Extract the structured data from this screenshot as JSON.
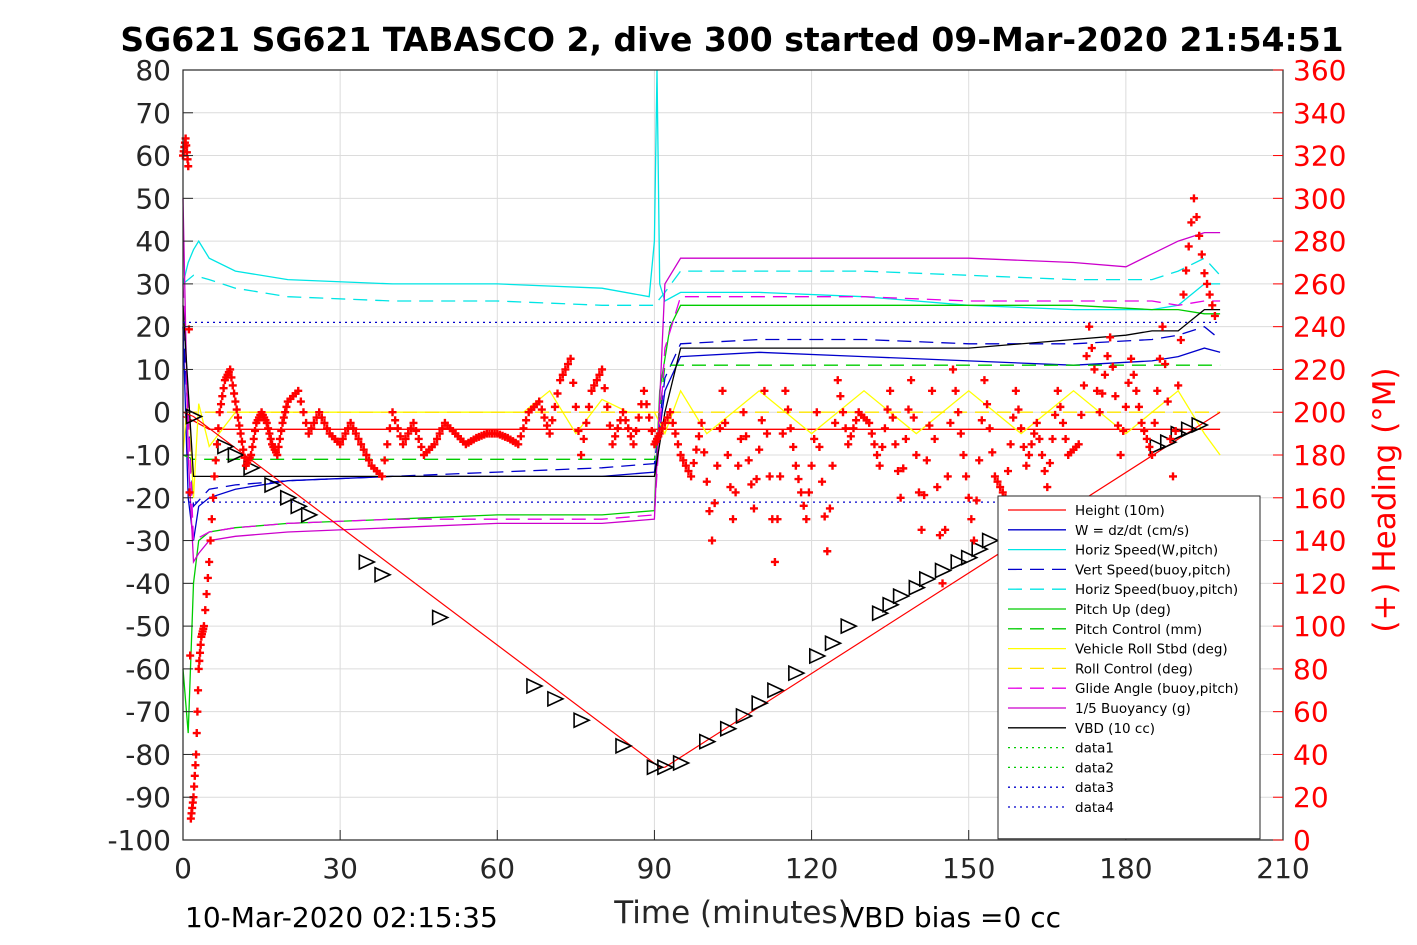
{
  "chart_data": {
    "type": "line",
    "title": "SG621 SG621 TABASCO 2, dive 300 started 09-Mar-2020 21:54:51",
    "xlabel": "Time (minutes)",
    "ylabel": "",
    "y2label": "(+) Heading (°M)",
    "xlim": [
      0,
      210
    ],
    "ylim": [
      -100,
      80
    ],
    "y2lim": [
      0,
      360
    ],
    "x_ticks": [
      "0",
      "30",
      "60",
      "90",
      "120",
      "150",
      "180",
      "210"
    ],
    "y_ticks": [
      "80",
      "70",
      "60",
      "50",
      "40",
      "30",
      "20",
      "10",
      "0",
      "-10",
      "-20",
      "-30",
      "-40",
      "-50",
      "-60",
      "-70",
      "-80",
      "-90",
      "-100"
    ],
    "y2_ticks": [
      "360",
      "340",
      "320",
      "300",
      "280",
      "260",
      "240",
      "220",
      "200",
      "180",
      "160",
      "140",
      "120",
      "100",
      "80",
      "60",
      "40",
      "20",
      "0"
    ],
    "grid": true,
    "legend_position": "bottom-right",
    "footer_left": "10-Mar-2020 02:15:35",
    "footer_right": "VBD bias =0 cc",
    "series": [
      {
        "name": "Height (10m)",
        "color": "#ff0000",
        "style": "solid",
        "x": [
          0,
          2,
          5,
          20,
          40,
          60,
          90,
          120,
          160,
          198
        ],
        "y": [
          -1,
          -2,
          -4,
          -4,
          -4,
          -4,
          -4,
          -4,
          -4,
          -4
        ]
      },
      {
        "name": "W = dz/dt (cm/s)",
        "color": "#0000cc",
        "style": "solid",
        "x": [
          0,
          1,
          2,
          3,
          5,
          10,
          20,
          40,
          60,
          80,
          90,
          92,
          95,
          110,
          130,
          150,
          170,
          185,
          190,
          195,
          198
        ],
        "y": [
          20,
          -20,
          -30,
          -22,
          -20,
          -18,
          -16,
          -15,
          -15,
          -15,
          -14,
          5,
          13,
          14,
          13,
          12,
          11,
          12,
          13,
          15,
          14
        ]
      },
      {
        "name": "Horiz Speed(W,pitch)",
        "color": "#00e5e5",
        "style": "solid",
        "x": [
          0,
          1,
          2,
          3,
          5,
          10,
          20,
          40,
          60,
          80,
          89,
          90,
          90.5,
          91,
          92,
          95,
          110,
          130,
          150,
          170,
          185,
          190,
          195,
          198
        ],
        "y": [
          30,
          35,
          38,
          40,
          36,
          33,
          31,
          30,
          30,
          29,
          27,
          40,
          80,
          30,
          26,
          28,
          28,
          27,
          25,
          24,
          24,
          25,
          30,
          30
        ]
      },
      {
        "name": "Vert Speed(buoy,pitch)",
        "color": "#0000cc",
        "style": "dashed",
        "x": [
          0,
          2,
          5,
          10,
          20,
          40,
          60,
          80,
          90,
          92,
          95,
          110,
          130,
          150,
          170,
          185,
          190,
          195,
          198
        ],
        "y": [
          20,
          -22,
          -18,
          -17,
          -16,
          -15,
          -14,
          -13,
          -12,
          8,
          16,
          17,
          17,
          16,
          16,
          17,
          18,
          20,
          17
        ]
      },
      {
        "name": "Horiz Speed(buoy,pitch)",
        "color": "#00e5e5",
        "style": "dashed",
        "x": [
          0,
          2,
          5,
          10,
          20,
          40,
          60,
          80,
          90,
          92,
          95,
          110,
          130,
          150,
          170,
          185,
          190,
          195,
          198
        ],
        "y": [
          30,
          32,
          31,
          29,
          27,
          26,
          26,
          25,
          25,
          28,
          33,
          33,
          33,
          32,
          31,
          31,
          33,
          36,
          32
        ]
      },
      {
        "name": "Pitch Up (deg)",
        "color": "#00cc00",
        "style": "solid",
        "x": [
          0,
          1,
          2,
          3,
          5,
          10,
          20,
          40,
          60,
          80,
          90,
          91,
          93,
          95,
          110,
          130,
          150,
          170,
          185,
          190,
          195,
          198
        ],
        "y": [
          -60,
          -75,
          -40,
          -30,
          -28,
          -27,
          -26,
          -25,
          -24,
          -24,
          -23,
          5,
          20,
          25,
          25,
          25,
          25,
          25,
          24,
          24,
          23,
          23
        ]
      },
      {
        "name": "Pitch Control (mm)",
        "color": "#00cc00",
        "style": "dashed",
        "x": [
          0,
          2,
          5,
          30,
          60,
          90,
          92,
          95,
          130,
          170,
          198
        ],
        "y": [
          -10,
          -11,
          -11,
          -11,
          -11,
          -11,
          11,
          11,
          11,
          11,
          11
        ]
      },
      {
        "name": "Vehicle Roll Stbd (deg)",
        "color": "#ffff00",
        "style": "solid",
        "x": [
          0,
          1,
          2,
          3,
          5,
          10,
          20,
          30,
          40,
          50,
          60,
          65,
          70,
          75,
          80,
          85,
          90,
          92,
          95,
          100,
          110,
          120,
          130,
          140,
          150,
          160,
          170,
          180,
          190,
          195,
          198
        ],
        "y": [
          -10,
          5,
          -20,
          2,
          -8,
          0,
          0,
          0,
          0,
          0,
          0,
          0,
          5,
          -5,
          3,
          0,
          0,
          -5,
          5,
          -5,
          5,
          -5,
          5,
          -5,
          5,
          -5,
          5,
          -5,
          5,
          -5,
          -10
        ]
      },
      {
        "name": "Roll Control (deg)",
        "color": "#ffe600",
        "style": "dashed",
        "x": [
          0,
          2,
          5,
          30,
          60,
          90,
          92,
          95,
          130,
          170,
          198
        ],
        "y": [
          0,
          0,
          0,
          0,
          0,
          0,
          0,
          0,
          0,
          0,
          0
        ]
      },
      {
        "name": "Glide Angle (buoy,pitch)",
        "color": "#e600e6",
        "style": "dashed",
        "x": [
          0,
          2,
          5,
          10,
          20,
          40,
          60,
          80,
          90,
          92,
          95,
          110,
          130,
          150,
          170,
          185,
          190,
          195,
          198
        ],
        "y": [
          30,
          -30,
          -28,
          -27,
          -26,
          -25,
          -25,
          -25,
          -24,
          15,
          27,
          27,
          27,
          26,
          26,
          26,
          25,
          26,
          26
        ]
      },
      {
        "name": "1/5 Buoyancy (g)",
        "color": "#cc00cc",
        "style": "solid",
        "x": [
          0,
          1,
          2,
          3,
          5,
          10,
          20,
          40,
          60,
          80,
          90,
          92,
          95,
          110,
          130,
          150,
          170,
          180,
          185,
          190,
          195,
          198
        ],
        "y": [
          50,
          -10,
          -35,
          -33,
          -30,
          -29,
          -28,
          -27,
          -26,
          -26,
          -25,
          30,
          36,
          36,
          36,
          36,
          35,
          34,
          37,
          40,
          42,
          42
        ]
      },
      {
        "name": "VBD (10 cc)",
        "color": "#000000",
        "style": "solid",
        "x": [
          0,
          2,
          2.1,
          10,
          20,
          40,
          60,
          80,
          90,
          92,
          95,
          110,
          130,
          150,
          170,
          180,
          185,
          190,
          195,
          198
        ],
        "y": [
          25,
          -15,
          -15,
          -15,
          -15,
          -15,
          -15,
          -15,
          -15,
          0,
          15,
          15,
          15,
          15,
          17,
          18,
          19,
          19,
          24,
          24
        ]
      },
      {
        "name": "data1",
        "color": "#00cc00",
        "style": "dotted",
        "x": [],
        "y": []
      },
      {
        "name": "data2",
        "color": "#00cc00",
        "style": "dotted",
        "x": [],
        "y": []
      },
      {
        "name": "data3",
        "color": "#0000cc",
        "style": "dotted",
        "x": [
          0,
          198
        ],
        "y": [
          21,
          21
        ]
      },
      {
        "name": "data4",
        "color": "#0000cc",
        "style": "dotted",
        "x": [
          0,
          198
        ],
        "y": [
          -21,
          -21
        ]
      }
    ],
    "depth_profile": {
      "color": "#ff0000",
      "x": [
        0,
        2,
        91,
        92,
        198
      ],
      "y": [
        0,
        -1,
        -83,
        -83,
        0
      ],
      "markers_x": [
        2,
        8,
        10,
        13,
        17,
        20,
        22,
        24,
        35,
        38,
        49,
        67,
        71,
        76,
        84,
        90,
        92,
        95,
        100,
        104,
        107,
        110,
        113,
        117,
        121,
        124,
        127,
        133,
        135,
        137,
        140,
        142,
        145,
        148,
        150,
        152,
        154,
        186,
        188,
        190,
        192,
        194
      ],
      "markers_y": [
        -1,
        -8,
        -10,
        -13,
        -17,
        -20,
        -22,
        -24,
        -35,
        -38,
        -48,
        -64,
        -67,
        -72,
        -78,
        -83,
        -83,
        -82,
        -77,
        -74,
        -71,
        -68,
        -65,
        -61,
        -57,
        -54,
        -50,
        -47,
        -45,
        -43,
        -41,
        -39,
        -37,
        -35,
        -34,
        -32,
        -30,
        -8,
        -7,
        -5,
        -4,
        -3
      ]
    },
    "heading": {
      "name": "(+) Heading (°M)",
      "color": "#ff0000",
      "x": [
        0,
        0.5,
        1,
        1.5,
        2,
        2.5,
        3,
        3.5,
        4,
        5,
        6,
        7,
        8,
        9,
        10,
        11,
        12,
        13,
        14,
        15,
        16,
        17,
        18,
        19,
        20,
        22,
        24,
        26,
        28,
        30,
        32,
        34,
        36,
        38,
        40,
        42,
        44,
        46,
        48,
        50,
        52,
        54,
        56,
        58,
        60,
        62,
        64,
        66,
        68,
        70,
        72,
        74,
        76,
        78,
        80,
        82,
        84,
        86,
        88,
        90,
        91,
        93,
        95,
        97,
        99,
        101,
        103,
        105,
        107,
        109,
        111,
        113,
        115,
        117,
        119,
        121,
        123,
        125,
        127,
        129,
        131,
        133,
        135,
        137,
        139,
        141,
        143,
        145,
        147,
        149,
        151,
        153,
        155,
        157,
        159,
        161,
        163,
        165,
        167,
        169,
        171,
        173,
        175,
        177,
        179,
        181,
        183,
        185,
        187,
        189,
        191,
        193,
        195,
        197
      ],
      "y": [
        320,
        328,
        315,
        10,
        20,
        40,
        80,
        95,
        100,
        130,
        170,
        200,
        215,
        220,
        205,
        190,
        175,
        180,
        195,
        200,
        195,
        185,
        180,
        195,
        205,
        210,
        190,
        200,
        190,
        185,
        195,
        185,
        175,
        170,
        200,
        185,
        195,
        180,
        185,
        195,
        190,
        185,
        188,
        190,
        190,
        188,
        185,
        200,
        205,
        190,
        215,
        225,
        180,
        210,
        220,
        185,
        200,
        185,
        210,
        185,
        190,
        200,
        180,
        170,
        195,
        140,
        210,
        150,
        200,
        155,
        210,
        130,
        210,
        175,
        150,
        200,
        135,
        215,
        185,
        200,
        195,
        175,
        210,
        160,
        215,
        145,
        210,
        120,
        220,
        180,
        140,
        215,
        170,
        160,
        210,
        175,
        195,
        165,
        210,
        180,
        185,
        240,
        200,
        235,
        180,
        225,
        195,
        180,
        240,
        170,
        255,
        300,
        265,
        245
      ]
    }
  }
}
